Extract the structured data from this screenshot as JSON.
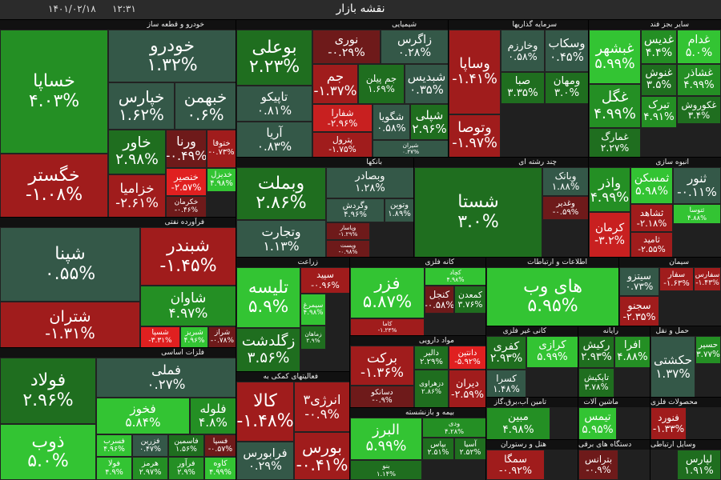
{
  "header": {
    "title": "نقشه بازار",
    "time": "۱۲:۳۱",
    "date": "۱۴۰۱/۰۲/۱۸"
  },
  "sectors": [
    {
      "name": "خودرو و قطعه ساز",
      "tiles": [
        {
          "symbol": "خساپا",
          "change": "۴.۰۳%",
          "color": "#248f24"
        },
        {
          "symbol": "خگستر",
          "change": "-۱.۰۸%",
          "color": "#a01c1c"
        },
        {
          "symbol": "خودرو",
          "change": "۱.۳۲%",
          "color": "#345848"
        },
        {
          "symbol": "خپارس",
          "change": "۱.۶۲%",
          "color": "#345848"
        },
        {
          "symbol": "خبهمن",
          "change": "۰.۶%",
          "color": "#345848"
        },
        {
          "symbol": "خاور",
          "change": "۲.۹۸%",
          "color": "#1f6e1f"
        },
        {
          "symbol": "خزامیا",
          "change": "-۲.۶۱%",
          "color": "#a01c1c"
        },
        {
          "symbol": "ورنا",
          "change": "-۰.۴۹%",
          "color": "#6e1a1a"
        },
        {
          "symbol": "ختوقا",
          "change": "-۰.۷۳%",
          "color": "#a01c1c"
        },
        {
          "symbol": "خنصیر",
          "change": "-۲.۵۷%",
          "color": "#e02020"
        },
        {
          "symbol": "خکرمان",
          "change": "-۰.۴۶%",
          "color": "#6e1a1a"
        },
        {
          "symbol": "خدیزل",
          "change": "۴.۹۸%",
          "color": "#33c433"
        }
      ]
    },
    {
      "name": "فرآورده نفتی",
      "tiles": [
        {
          "symbol": "شپنا",
          "change": "۰.۵۵%",
          "color": "#345848"
        },
        {
          "symbol": "شتران",
          "change": "-۱.۳۱%",
          "color": "#a01c1c"
        },
        {
          "symbol": "شبندر",
          "change": "-۱.۴۵%",
          "color": "#a01c1c"
        },
        {
          "symbol": "شاوان",
          "change": "۴.۹۷%",
          "color": "#248f24"
        },
        {
          "symbol": "شسپا",
          "change": "-۳.۳۱%",
          "color": "#e02020"
        },
        {
          "symbol": "شبریز",
          "change": "۴.۹۶%",
          "color": "#33c433"
        },
        {
          "symbol": "شراز",
          "change": "-۰.۷۸%",
          "color": "#6e1a1a"
        }
      ]
    },
    {
      "name": "فلزات اساسی",
      "tiles": [
        {
          "symbol": "فولاد",
          "change": "۲.۹۶%",
          "color": "#1f6e1f"
        },
        {
          "symbol": "ذوب",
          "change": "۵.۰%",
          "color": "#33c433"
        },
        {
          "symbol": "فملی",
          "change": "۰.۲۷%",
          "color": "#345848"
        },
        {
          "symbol": "فخوز",
          "change": "۵.۸۴%",
          "color": "#33c433"
        },
        {
          "symbol": "فلوله",
          "change": "۴.۸%",
          "color": "#248f24"
        },
        {
          "symbol": "فسرب",
          "change": "۴.۹۶%",
          "color": "#33c433"
        },
        {
          "symbol": "فزرین",
          "change": "۰.۴۷%",
          "color": "#345848"
        },
        {
          "symbol": "فاسمین",
          "change": "۱.۵۶%",
          "color": "#1f6e1f"
        },
        {
          "symbol": "فسپا",
          "change": "-۰.۵۷%",
          "color": "#6e1a1a"
        },
        {
          "symbol": "فولا",
          "change": "۴.۹%",
          "color": "#33c433"
        },
        {
          "symbol": "هرمز",
          "change": "۲.۹۷%",
          "color": "#248f24"
        },
        {
          "symbol": "فرآور",
          "change": "۲.۹%",
          "color": "#248f24"
        },
        {
          "symbol": "کاوه",
          "change": "۴.۹۹%",
          "color": "#33c433"
        }
      ]
    },
    {
      "name": "شیمیایی",
      "tiles": [
        {
          "symbol": "بوعلی",
          "change": "۲.۲۳%",
          "color": "#1f6e1f"
        },
        {
          "symbol": "تاپیکو",
          "change": "۰.۸۱%",
          "color": "#345848"
        },
        {
          "symbol": "آریا",
          "change": "۰.۸۳%",
          "color": "#345848"
        },
        {
          "symbol": "نوری",
          "change": "-۰.۲۹%",
          "color": "#6e1a1a"
        },
        {
          "symbol": "زاگرس",
          "change": "۰.۲۸%",
          "color": "#345848"
        },
        {
          "symbol": "جم",
          "change": "-۱.۳۷%",
          "color": "#a01c1c"
        },
        {
          "symbol": "جم پیلن",
          "change": "۱.۶۹%",
          "color": "#1f6e1f"
        },
        {
          "symbol": "شبدیس",
          "change": "۰.۳۵%",
          "color": "#345848"
        },
        {
          "symbol": "شفارا",
          "change": "-۲.۹۶%",
          "color": "#c82020"
        },
        {
          "symbol": "پترول",
          "change": "-۱.۷۵%",
          "color": "#a01c1c"
        },
        {
          "symbol": "شگویا",
          "change": "۰.۵۸%",
          "color": "#345848"
        },
        {
          "symbol": "شپلی",
          "change": "۲.۹۶%",
          "color": "#1f6e1f"
        },
        {
          "symbol": "شیران",
          "change": "۰.۴۷%",
          "color": "#345848"
        }
      ]
    },
    {
      "name": "بانکها",
      "tiles": [
        {
          "symbol": "وبملت",
          "change": "۲.۸۶%",
          "color": "#1f6e1f"
        },
        {
          "symbol": "وتجارت",
          "change": "۱.۱۳%",
          "color": "#345848"
        },
        {
          "symbol": "وبصادر",
          "change": "۱.۲۸%",
          "color": "#345848"
        },
        {
          "symbol": "وگردش",
          "change": "۴.۹۶%",
          "color": "#345848"
        },
        {
          "symbol": "وتوین",
          "change": "۱.۸۹%",
          "color": "#345848"
        },
        {
          "symbol": "وپاسار",
          "change": "-۱.۲۹%",
          "color": "#6e1a1a"
        },
        {
          "symbol": "وپست",
          "change": "-۰.۹۸%",
          "color": "#6e1a1a"
        }
      ]
    },
    {
      "name": "سرمایه گذاریها",
      "tiles": [
        {
          "symbol": "وساپا",
          "change": "-۱.۴۱%",
          "color": "#a01c1c"
        },
        {
          "symbol": "وتوصا",
          "change": "-۱.۹۷%",
          "color": "#a01c1c"
        },
        {
          "symbol": "وخارزم",
          "change": "۰.۵۸%",
          "color": "#345848"
        },
        {
          "symbol": "وسکاب",
          "change": "۰.۴۵%",
          "color": "#345848"
        },
        {
          "symbol": "صبا",
          "change": "۳.۳۵%",
          "color": "#1f6e1f"
        },
        {
          "symbol": "ومهان",
          "change": "۳.۰%",
          "color": "#1f6e1f"
        }
      ]
    },
    {
      "name": "سایر بجز فند",
      "tiles": [
        {
          "symbol": "غبشهر",
          "change": "۵.۹۹%",
          "color": "#33c433"
        },
        {
          "symbol": "غگل",
          "change": "۴.۹۹%",
          "color": "#248f24"
        },
        {
          "symbol": "غمارگ",
          "change": "۲.۲۷%",
          "color": "#1f6e1f"
        },
        {
          "symbol": "غدیس",
          "change": "۴.۴%",
          "color": "#248f24"
        },
        {
          "symbol": "غدام",
          "change": "۵.۰%",
          "color": "#33c433"
        },
        {
          "symbol": "غنوش",
          "change": "۳.۵%",
          "color": "#1f6e1f"
        },
        {
          "symbol": "غشاذر",
          "change": "۴.۹۹%",
          "color": "#248f24"
        },
        {
          "symbol": "تبرک",
          "change": "۴.۹۱%",
          "color": "#248f24"
        },
        {
          "symbol": "غکوروش",
          "change": "۳.۴%",
          "color": "#1f6e1f"
        }
      ]
    },
    {
      "name": "چند رشته ای",
      "tiles": [
        {
          "symbol": "شستا",
          "change": "۳.۰%",
          "color": "#1f6e1f"
        },
        {
          "symbol": "وبانک",
          "change": "۱.۸۸%",
          "color": "#345848"
        },
        {
          "symbol": "وغدیر",
          "change": "-۰.۵۹%",
          "color": "#6e1a1a"
        }
      ]
    },
    {
      "name": "انبوه سازی",
      "tiles": [
        {
          "symbol": "واذر",
          "change": "۴.۹۹%",
          "color": "#248f24"
        },
        {
          "symbol": "کرمان",
          "change": "-۳.۲%",
          "color": "#c82020"
        },
        {
          "symbol": "ثمسکن",
          "change": "۵.۹۸%",
          "color": "#33c433"
        },
        {
          "symbol": "ثنور",
          "change": "-۰.۱۱%",
          "color": "#345848"
        },
        {
          "symbol": "ثشاهد",
          "change": "-۲.۱۸%",
          "color": "#a01c1c"
        },
        {
          "symbol": "ثامید",
          "change": "-۲.۵۵%",
          "color": "#a01c1c"
        },
        {
          "symbol": "ثتوسا",
          "change": "۴.۸۸%",
          "color": "#33c433"
        }
      ]
    },
    {
      "name": "زراعت",
      "tiles": [
        {
          "symbol": "تلیسه",
          "change": "۵.۹%",
          "color": "#33c433"
        },
        {
          "symbol": "زگلدشت",
          "change": "۳.۵۶%",
          "color": "#1f6e1f"
        },
        {
          "symbol": "سپید",
          "change": "-۰.۹۶%",
          "color": "#a01c1c"
        },
        {
          "symbol": "سیمرغ",
          "change": "۴.۹۸%",
          "color": "#33c433"
        },
        {
          "symbol": "زماهان",
          "change": "۲.۹%",
          "color": "#1f6e1f"
        }
      ]
    },
    {
      "name": "فعالیتهای کمکی به",
      "tiles": [
        {
          "symbol": "کالا",
          "change": "-۱.۴۸%",
          "color": "#a01c1c"
        },
        {
          "symbol": "فرابورس",
          "change": "۰.۲۹%",
          "color": "#345848"
        },
        {
          "symbol": "انرژی۳",
          "change": "-۰.۹%",
          "color": "#a01c1c"
        },
        {
          "symbol": "بورس",
          "change": "-۰.۴۱%",
          "color": "#a01c1c"
        }
      ]
    },
    {
      "name": "کانه فلزی",
      "tiles": [
        {
          "symbol": "فزر",
          "change": "۵.۸۷%",
          "color": "#33c433"
        },
        {
          "symbol": "کاما",
          "change": "-۱.۲۴%",
          "color": "#a01c1c"
        },
        {
          "symbol": "کچاد",
          "change": "۴.۹۸%",
          "color": "#33c433"
        },
        {
          "symbol": "کنجل",
          "change": "-۰.۵۸%",
          "color": "#6e1a1a"
        },
        {
          "symbol": "کمعدن",
          "change": "۳.۷۶%",
          "color": "#1f6e1f"
        }
      ]
    },
    {
      "name": "مواد دارویی",
      "tiles": [
        {
          "symbol": "برکت",
          "change": "-۱.۳۶%",
          "color": "#a01c1c"
        },
        {
          "symbol": "دسانکو",
          "change": "-۰.۹%",
          "color": "#6e1a1a"
        },
        {
          "symbol": "دالبر",
          "change": "۲.۲۹%",
          "color": "#1f6e1f"
        },
        {
          "symbol": "دانتین",
          "change": "-۵.۹۲%",
          "color": "#e02020"
        },
        {
          "symbol": "دزهراوی",
          "change": "۲.۸۶%",
          "color": "#1f6e1f"
        },
        {
          "symbol": "دیران",
          "change": "-۲.۵۹%",
          "color": "#a01c1c"
        }
      ]
    },
    {
      "name": "بیمه و بازنشسته",
      "tiles": [
        {
          "symbol": "البرز",
          "change": "۵.۹۹%",
          "color": "#33c433"
        },
        {
          "symbol": "بنو",
          "change": "۱.۱۴%",
          "color": "#1f6e1f"
        },
        {
          "symbol": "ودی",
          "change": "۴.۲۸%",
          "color": "#248f24"
        },
        {
          "symbol": "بپاس",
          "change": "۲.۵۱%",
          "color": "#1f6e1f"
        },
        {
          "symbol": "آسیا",
          "change": "۲.۵۲%",
          "color": "#1f6e1f"
        }
      ]
    },
    {
      "name": "اطلاعات و ارتباطات",
      "tiles": [
        {
          "symbol": "های وب",
          "change": "۵.۹۵%",
          "color": "#33c433"
        }
      ]
    },
    {
      "name": "سیمان",
      "tiles": [
        {
          "symbol": "سیتزو",
          "change": "۰.۷۳%",
          "color": "#345848"
        },
        {
          "symbol": "سجنو",
          "change": "-۲.۳۵%",
          "color": "#a01c1c"
        },
        {
          "symbol": "سفار",
          "change": "-۱.۶۳%",
          "color": "#a01c1c"
        },
        {
          "symbol": "سفارس",
          "change": "-۱.۴۳%",
          "color": "#a01c1c"
        }
      ]
    },
    {
      "name": "کانی غیر فلزی",
      "tiles": [
        {
          "symbol": "کفری",
          "change": "۲.۹۳%",
          "color": "#1f6e1f"
        },
        {
          "symbol": "کسرا",
          "change": "۱.۴۸%",
          "color": "#345848"
        },
        {
          "symbol": "کرازی",
          "change": "۵.۹۹%",
          "color": "#33c433"
        }
      ]
    },
    {
      "name": "رایانه",
      "tiles": [
        {
          "symbol": "رکیش",
          "change": "۲.۹۳%",
          "color": "#1f6e1f"
        },
        {
          "symbol": "افرا",
          "change": "۴.۸۸%",
          "color": "#248f24"
        },
        {
          "symbol": "تاپکیش",
          "change": "۳.۷۸%",
          "color": "#1f6e1f"
        }
      ]
    },
    {
      "name": "حمل و نقل",
      "tiles": [
        {
          "symbol": "حکشتی",
          "change": "۱.۳۷%",
          "color": "#345848"
        },
        {
          "symbol": "حسیر",
          "change": "۳.۷۷%",
          "color": "#248f24"
        }
      ]
    },
    {
      "name": "تامین آب،برق،گاز",
      "tiles": [
        {
          "symbol": "مبین",
          "change": "۴.۹۸%",
          "color": "#248f24"
        }
      ]
    },
    {
      "name": "ماشین آلات",
      "tiles": [
        {
          "symbol": "تیمس",
          "change": "۵.۹۵%",
          "color": "#33c433"
        }
      ]
    },
    {
      "name": "محصولات فلزی",
      "tiles": [
        {
          "symbol": "فنورد",
          "change": "-۱.۳۳%",
          "color": "#a01c1c"
        }
      ]
    },
    {
      "name": "هتل و رستوران",
      "tiles": [
        {
          "symbol": "سمگا",
          "change": "-۰.۹۲%",
          "color": "#a01c1c"
        }
      ]
    },
    {
      "name": "دستگاه های برقی",
      "tiles": [
        {
          "symbol": "بترانس",
          "change": "-۰.۹%",
          "color": "#6e1a1a"
        }
      ]
    },
    {
      "name": "وسایل ارتباطی",
      "tiles": [
        {
          "symbol": "لپارس",
          "change": "۱.۹۱%",
          "color": "#1f6e1f"
        }
      ]
    }
  ]
}
